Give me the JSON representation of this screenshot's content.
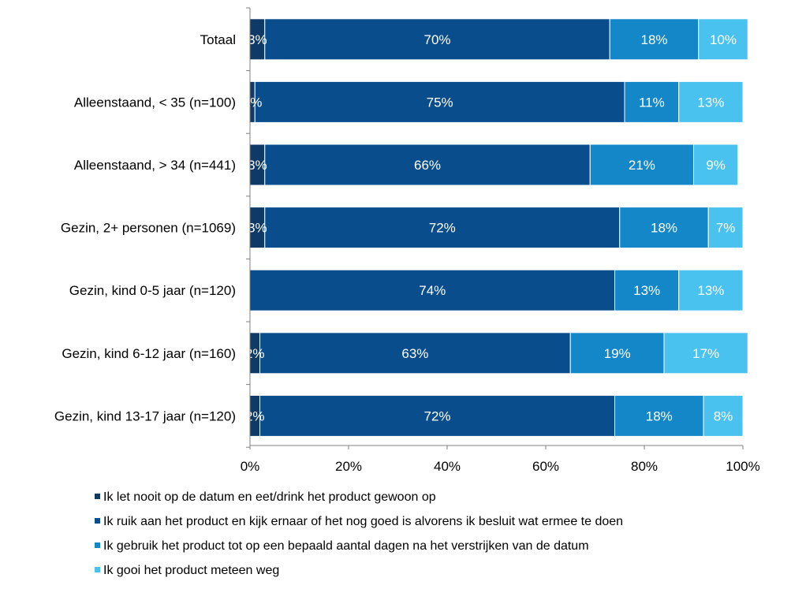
{
  "chart_data": {
    "type": "bar",
    "orientation": "horizontal",
    "stacked": true,
    "title": "",
    "xlabel": "",
    "ylabel": "",
    "xlim": [
      0,
      100
    ],
    "x_tick_values": [
      0,
      20,
      40,
      60,
      80,
      100
    ],
    "x_tick_labels": [
      "0%",
      "20%",
      "40%",
      "60%",
      "80%",
      "100%"
    ],
    "grid": false,
    "legend_position": "bottom",
    "categories": [
      "Totaal",
      "Alleenstaand, < 35 (n=100)",
      "Alleenstaand, > 34 (n=441)",
      "Gezin, 2+ personen (n=1069)",
      "Gezin, kind 0-5 jaar (n=120)",
      "Gezin, kind 6-12 jaar (n=160)",
      "Gezin, kind 13-17 jaar (n=120)"
    ],
    "series": [
      {
        "name": "Ik let nooit op de datum en eet/drink het product gewoon op",
        "color": "#0f3a66",
        "values": [
          3,
          1,
          3,
          3,
          0,
          2,
          2
        ],
        "labels": [
          "3%",
          "1%",
          "3%",
          "3%",
          "",
          "2%",
          "2%"
        ]
      },
      {
        "name": "Ik ruik aan het product en kijk ernaar of het nog goed is alvorens ik besluit wat ermee te doen",
        "color": "#0a4d8c",
        "values": [
          70,
          75,
          66,
          72,
          74,
          63,
          72
        ],
        "labels": [
          "70%",
          "75%",
          "66%",
          "72%",
          "74%",
          "63%",
          "72%"
        ]
      },
      {
        "name": "Ik gebruik het product tot op een bepaald aantal dagen na het verstrijken van de datum",
        "color": "#1487c9",
        "values": [
          18,
          11,
          21,
          18,
          13,
          19,
          18
        ],
        "labels": [
          "18%",
          "11%",
          "21%",
          "18%",
          "13%",
          "19%",
          "18%"
        ]
      },
      {
        "name": "Ik gooi het product meteen weg",
        "color": "#49c2f0",
        "values": [
          10,
          13,
          9,
          7,
          13,
          17,
          8
        ],
        "labels": [
          "10%",
          "13%",
          "9%",
          "7%",
          "13%",
          "17%",
          "8%"
        ]
      }
    ]
  }
}
